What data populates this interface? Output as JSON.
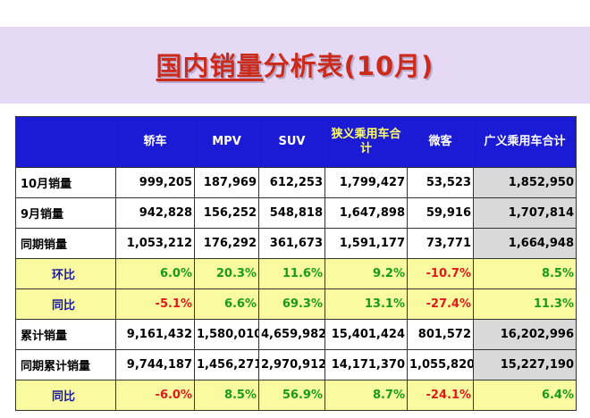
{
  "title": {
    "highlight": "国内销量",
    "rest": "分析表(10月)"
  },
  "table": {
    "headers": [
      "",
      "轿车",
      "MPV",
      "SUV",
      "狭义乘用车合计",
      "微客",
      "广义乘用车合计"
    ],
    "rows": [
      {
        "label": "10月销量",
        "cells": [
          "999,205",
          "187,969",
          "612,253",
          "1,799,427",
          "53,523",
          "1,852,950"
        ]
      },
      {
        "label": "9月销量",
        "cells": [
          "942,828",
          "156,252",
          "548,818",
          "1,647,898",
          "59,916",
          "1,707,814"
        ]
      },
      {
        "label": "同期销量",
        "cells": [
          "1,053,212",
          "176,292",
          "361,673",
          "1,591,177",
          "73,771",
          "1,664,948"
        ]
      },
      {
        "label": "环比",
        "cells": [
          "6.0%",
          "20.3%",
          "11.6%",
          "9.2%",
          "-10.7%",
          "8.5%"
        ]
      },
      {
        "label": "同比",
        "cells": [
          "-5.1%",
          "6.6%",
          "69.3%",
          "13.1%",
          "-27.4%",
          "11.3%"
        ]
      },
      {
        "label": "累计销量",
        "cells": [
          "9,161,432",
          "1,580,010",
          "4,659,982",
          "15,401,424",
          "801,572",
          "16,202,996"
        ]
      },
      {
        "label": "同期累计销量",
        "cells": [
          "9,744,187",
          "1,456,271",
          "2,970,912",
          "14,171,370",
          "1,055,820",
          "15,227,190"
        ]
      },
      {
        "label": "同比",
        "cells": [
          "-6.0%",
          "8.5%",
          "56.9%",
          "8.7%",
          "-24.1%",
          "6.4%"
        ]
      }
    ]
  },
  "colors": {
    "title_red": "#cc2a1a",
    "header_blue": "#1b1bd6",
    "band_lavender": "#e6d9f6",
    "ratio_yellow": "#fafaa0",
    "positive_green": "#1a9a1a",
    "negative_red": "#e01a1a"
  }
}
